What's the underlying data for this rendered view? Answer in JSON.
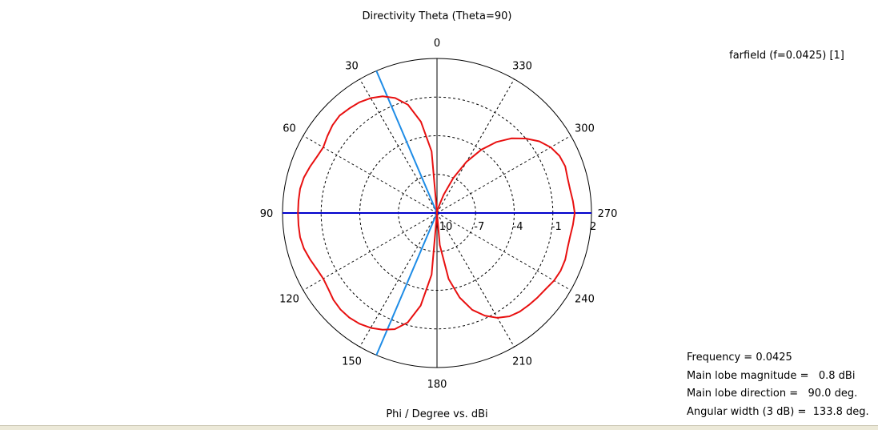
{
  "chart_data": {
    "type": "polar-line",
    "title": "Directivity Theta (Theta=90)",
    "xlabel": "Phi / Degree vs. dBi",
    "legend": "farfield (f=0.0425) [1]",
    "legend_position": "top-right",
    "radial_range": [
      -10,
      2
    ],
    "radial_ticks": [
      -10,
      -7,
      -4,
      -1,
      2
    ],
    "radial_tick_labels": [
      "-10",
      "-7",
      "-4",
      "-1",
      "2"
    ],
    "angle_ticks": [
      0,
      30,
      60,
      90,
      120,
      150,
      180,
      210,
      240,
      270,
      300,
      330
    ],
    "angle_tick_labels": [
      "0",
      "30",
      "60",
      "90",
      "120",
      "150",
      "180",
      "210",
      "240",
      "270",
      "300",
      "330"
    ],
    "angle_direction": "counterclockwise",
    "zero_location": "top",
    "grid": true,
    "colors": {
      "curve": "#e81010",
      "legend": "#e81010",
      "main_lobe_line": "#0000cc",
      "beamwidth_lines": "#1e8ce6",
      "grid": "#000000"
    },
    "markers": {
      "main_lobe_direction": 90,
      "beamwidth_limits": [
        23.1,
        156.9
      ]
    },
    "series": [
      {
        "name": "farfield (f=0.0425) [1]",
        "phi": [
          0,
          5,
          10,
          15,
          20,
          25,
          30,
          35,
          40,
          45,
          50,
          55,
          60,
          65,
          70,
          75,
          80,
          85,
          90,
          95,
          100,
          105,
          110,
          115,
          120,
          125,
          130,
          135,
          140,
          145,
          150,
          155,
          160,
          165,
          170,
          175,
          180,
          185,
          190,
          195,
          200,
          205,
          210,
          215,
          220,
          225,
          230,
          235,
          240,
          245,
          250,
          255,
          260,
          265,
          270,
          275,
          280,
          285,
          290,
          295,
          300,
          305,
          310,
          315,
          320,
          325,
          330,
          335,
          340,
          345,
          350,
          355,
          360
        ],
        "dbi": [
          -10,
          -5.2,
          -2.8,
          -1.3,
          -0.5,
          0.0,
          0.3,
          0.5,
          0.6,
          0.7,
          0.6,
          0.4,
          0.2,
          0.3,
          0.5,
          0.7,
          0.8,
          0.8,
          0.8,
          0.8,
          0.8,
          0.7,
          0.5,
          0.3,
          0.2,
          0.3,
          0.5,
          0.6,
          0.6,
          0.5,
          0.3,
          0.0,
          -0.4,
          -1.2,
          -2.7,
          -5.2,
          -10,
          -7.5,
          -4.8,
          -3.2,
          -2.0,
          -1.2,
          -0.6,
          -0.2,
          0.0,
          0.1,
          0.2,
          0.3,
          0.5,
          0.6,
          0.6,
          0.5,
          0.5,
          0.6,
          0.7,
          0.6,
          0.5,
          0.5,
          0.6,
          0.5,
          0.2,
          -0.3,
          -1.0,
          -1.8,
          -2.8,
          -4.0,
          -5.4,
          -7.0,
          -8.5,
          -9.5,
          -9.8,
          -9.9,
          -10
        ]
      }
    ]
  },
  "info": {
    "frequency": "Frequency = 0.0425",
    "magnitude": "Main lobe magnitude =   0.8 dBi",
    "direction": "Main lobe direction =   90.0 deg.",
    "width": "Angular width (3 dB) =  133.8 deg."
  }
}
